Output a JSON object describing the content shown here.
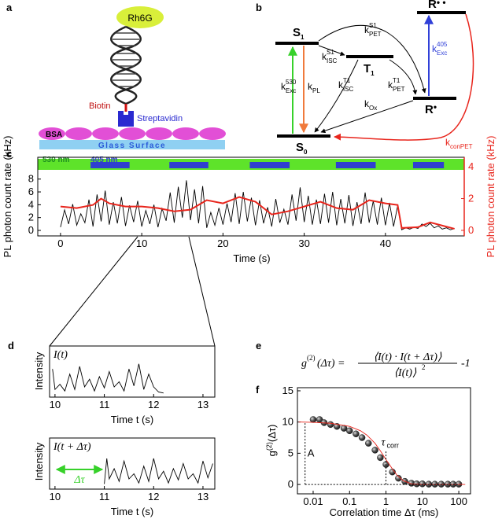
{
  "panel_labels": [
    "a",
    "b",
    "c",
    "d",
    "e",
    "f"
  ],
  "diagram_a": {
    "dye": "Rh6G",
    "linker": "Biotin",
    "protein": "Streptavidin",
    "blocker": "BSA",
    "surface": "Glass Surface"
  },
  "diagram_b": {
    "states": [
      {
        "main": "S",
        "sub": "1"
      },
      {
        "main": "T",
        "sub": "1"
      },
      {
        "main": "R",
        "sup": "•"
      },
      {
        "main": "R",
        "sup": "• •"
      },
      {
        "main": "S",
        "sub": "0"
      }
    ],
    "rates": [
      {
        "main": "k",
        "sup": "530",
        "sub": "Exc"
      },
      {
        "main": "k",
        "sub": "PL"
      },
      {
        "main": "k",
        "sup": "S1",
        "sub": "ISC"
      },
      {
        "main": "k",
        "sup": "S1",
        "sub": "PET"
      },
      {
        "main": "k",
        "sup": "T1",
        "sub": "ISC"
      },
      {
        "main": "k",
        "sup": "T1",
        "sub": "PET"
      },
      {
        "main": "k",
        "sub": "Ox"
      },
      {
        "main": "k",
        "sup": "405",
        "sub": "Exc"
      },
      {
        "main": "k",
        "sub": "conPET"
      }
    ]
  },
  "equation": {
    "lhs": "g",
    "lhs_sup": "(2)",
    "lhs_arg": "(Δτ) =",
    "numerator": "⟨I(t) · I(t + Δτ)⟩",
    "denominator": "⟨I(t)⟩",
    "denominator_sup": "2",
    "tail": "-1"
  },
  "chart_data": [
    {
      "type": "line",
      "xlabel": "Time (s)",
      "ylabel": "PL photon count rate (kHz)",
      "y2label": "PL photon count rate (kHz)",
      "xlim": [
        -2.8,
        49.7
      ],
      "xticks": [
        0,
        10,
        20,
        30,
        40
      ],
      "ylim": [
        -0.86,
        11.4
      ],
      "yticks": [
        0,
        2,
        4,
        6,
        8
      ],
      "y2lim": [
        -0.35,
        4.6
      ],
      "y2ticks": [
        0,
        2,
        4
      ],
      "y2color": "#e8251c",
      "excitation": {
        "base_label": "530 nm",
        "base_color": "#5ee32a",
        "pulse_label": "405 nm",
        "pulse_color": "#2f3fd0",
        "pulses": [
          [
            3.7,
            8.5
          ],
          [
            13.4,
            18.2
          ],
          [
            23.3,
            28.2
          ],
          [
            33.9,
            38.8
          ],
          [
            43.4,
            47.2
          ]
        ]
      },
      "series": [
        {
          "color": "#000000",
          "x": [
            0,
            0.5,
            1,
            1.5,
            2,
            2.5,
            3,
            3.5,
            4,
            4.5,
            5,
            5.5,
            6,
            6.5,
            7,
            7.5,
            8,
            8.5,
            9,
            9.5,
            10,
            10.5,
            11,
            11.5,
            12,
            12.5,
            13,
            13.5,
            14,
            14.5,
            15,
            15.5,
            16,
            16.5,
            17,
            17.5,
            18,
            18.5,
            19,
            19.5,
            20,
            20.5,
            21,
            21.5,
            22,
            22.5,
            23,
            23.5,
            24,
            24.5,
            25,
            25.5,
            26,
            26.5,
            27,
            27.5,
            28,
            28.5,
            29,
            29.5,
            30,
            30.5,
            31,
            31.5,
            32,
            32.5,
            33,
            33.5,
            34,
            34.5,
            35,
            35.5,
            36,
            36.5,
            37,
            37.5,
            38,
            38.5,
            39,
            39.5,
            40,
            40.5,
            41,
            41.5,
            42,
            42.5,
            43,
            43.5,
            44,
            44.5,
            45,
            45.5,
            46,
            46.5,
            47,
            47.5,
            48,
            48.5
          ],
          "values": [
            0.5,
            3.2,
            1.0,
            4.1,
            0.8,
            2.6,
            1.2,
            4.8,
            0.6,
            5.6,
            1.4,
            6.2,
            0.9,
            4.4,
            1.1,
            5.2,
            0.7,
            3.9,
            1.3,
            4.6,
            0.6,
            3.1,
            1.0,
            4.0,
            0.5,
            3.4,
            1.5,
            5.9,
            1.2,
            6.8,
            2.0,
            7.8,
            1.6,
            6.4,
            1.1,
            6.9,
            0.4,
            2.8,
            0.8,
            3.5,
            0.9,
            4.2,
            1.3,
            5.8,
            1.0,
            6.0,
            1.4,
            5.1,
            0.8,
            4.7,
            1.1,
            3.6,
            0.6,
            4.9,
            1.2,
            3.3,
            0.9,
            5.6,
            1.5,
            6.7,
            1.3,
            5.4,
            0.9,
            4.8,
            1.0,
            5.7,
            1.2,
            6.0,
            0.8,
            4.9,
            1.1,
            5.5,
            0.7,
            4.4,
            1.0,
            5.9,
            1.2,
            4.6,
            0.9,
            5.1,
            0.8,
            4.3,
            0.6,
            3.8,
            0.1,
            0.4,
            0.2,
            0.5,
            0.3,
            1.0,
            0.6,
            1.1,
            0.4,
            0.7,
            0.2,
            0.4,
            0.1,
            0.3
          ]
        },
        {
          "color": "#e8251c",
          "axis": "y2",
          "x": [
            0,
            2,
            4,
            5,
            6,
            8,
            10,
            12,
            14,
            16,
            18,
            20,
            22,
            24,
            26,
            28,
            30,
            32,
            34,
            36,
            38,
            40,
            41.5,
            42,
            44,
            45.5,
            47,
            48.5
          ],
          "values": [
            1.5,
            1.4,
            1.6,
            2.0,
            1.7,
            1.5,
            1.5,
            1.4,
            1.2,
            1.3,
            1.9,
            1.7,
            2.1,
            1.8,
            1.0,
            1.2,
            1.5,
            1.8,
            1.4,
            1.3,
            1.9,
            1.7,
            1.6,
            0.15,
            0.2,
            0.5,
            0.3,
            0.1
          ]
        }
      ]
    },
    {
      "type": "line",
      "xlabel": "Time t (s)",
      "ylabel": "Intensity",
      "trace_label": "I(t)",
      "xlim": [
        9.89,
        13.24
      ],
      "xticks": [
        10,
        11,
        12,
        13
      ],
      "ylim": [
        0,
        1
      ],
      "series": [
        {
          "color": "#000000",
          "x": [
            9.95,
            10,
            10.1,
            10.2,
            10.3,
            10.4,
            10.5,
            10.6,
            10.7,
            10.8,
            10.9,
            11,
            11.1,
            11.2,
            11.3,
            11.4,
            11.5,
            11.6,
            11.7,
            11.8,
            11.9,
            12,
            12.1,
            12.2
          ],
          "values": [
            0.55,
            0.15,
            0.25,
            0.12,
            0.45,
            0.15,
            0.6,
            0.2,
            0.35,
            0.12,
            0.4,
            0.18,
            0.5,
            0.2,
            0.3,
            0.12,
            0.55,
            0.22,
            0.65,
            0.15,
            0.45,
            0.2,
            0.1,
            0.08
          ]
        }
      ]
    },
    {
      "type": "line",
      "xlabel": "Time t (s)",
      "ylabel": "Intensity",
      "trace_label": "I(t + Δτ)",
      "delay_label": "Δτ",
      "xlim": [
        9.89,
        13.24
      ],
      "xticks": [
        10,
        11,
        12,
        13
      ],
      "ylim": [
        0,
        1
      ],
      "series": [
        {
          "color": "#000000",
          "x": [
            11,
            11.05,
            11.1,
            11.2,
            11.3,
            11.4,
            11.5,
            11.6,
            11.7,
            11.8,
            11.9,
            12,
            12.1,
            12.2,
            12.3,
            12.4,
            12.5,
            12.6,
            12.7,
            12.8,
            12.9,
            13,
            13.1,
            13.2
          ],
          "values": [
            0.1,
            0.6,
            0.2,
            0.4,
            0.15,
            0.55,
            0.2,
            0.3,
            0.12,
            0.45,
            0.15,
            0.6,
            0.2,
            0.35,
            0.12,
            0.4,
            0.18,
            0.5,
            0.2,
            0.3,
            0.12,
            0.55,
            0.22,
            0.5
          ]
        }
      ]
    },
    {
      "type": "scatter",
      "xlabel": "Correlation time Δτ (ms)",
      "ylabel": {
        "main": "g",
        "sup": "(2)",
        "arg": "(Δτ)"
      },
      "xscale": "log",
      "xlim": [
        0.0037,
        210
      ],
      "xticks": [
        0.01,
        0.1,
        1,
        10,
        100
      ],
      "ylim": [
        -1.5,
        15.5
      ],
      "yticks": [
        0,
        5,
        10,
        15
      ],
      "series": [
        {
          "color": "#222222",
          "x": [
            0.01,
            0.015,
            0.02,
            0.03,
            0.045,
            0.07,
            0.1,
            0.15,
            0.22,
            0.33,
            0.5,
            0.7,
            1,
            1.5,
            2.2,
            3.3,
            5,
            7,
            10,
            15,
            22,
            33,
            50,
            70,
            100
          ],
          "values": [
            10.4,
            10.4,
            9.9,
            9.6,
            9.3,
            9.0,
            8.6,
            8.1,
            7.5,
            6.6,
            5.5,
            4.3,
            3.2,
            2.0,
            1.0,
            0.5,
            0.2,
            0.1,
            0.1,
            0.05,
            0.05,
            0.05,
            0.05,
            0.05,
            0.05
          ]
        },
        {
          "type": "line",
          "color": "#e8251c",
          "x": [
            0.004,
            0.01,
            0.03,
            0.1,
            0.2,
            0.3,
            0.5,
            0.7,
            1,
            1.5,
            2,
            3,
            5,
            10,
            100,
            150
          ],
          "values": [
            10,
            9.95,
            9.8,
            9.3,
            8.6,
            7.9,
            6.6,
            5.4,
            4.0,
            2.5,
            1.5,
            0.6,
            0.1,
            0,
            0,
            0
          ]
        }
      ],
      "annotations": [
        {
          "main": "τ",
          "sub": "corr",
          "x": 1,
          "y": 5.5
        },
        {
          "main": "A",
          "x": 0.006,
          "y": 10
        }
      ]
    }
  ]
}
